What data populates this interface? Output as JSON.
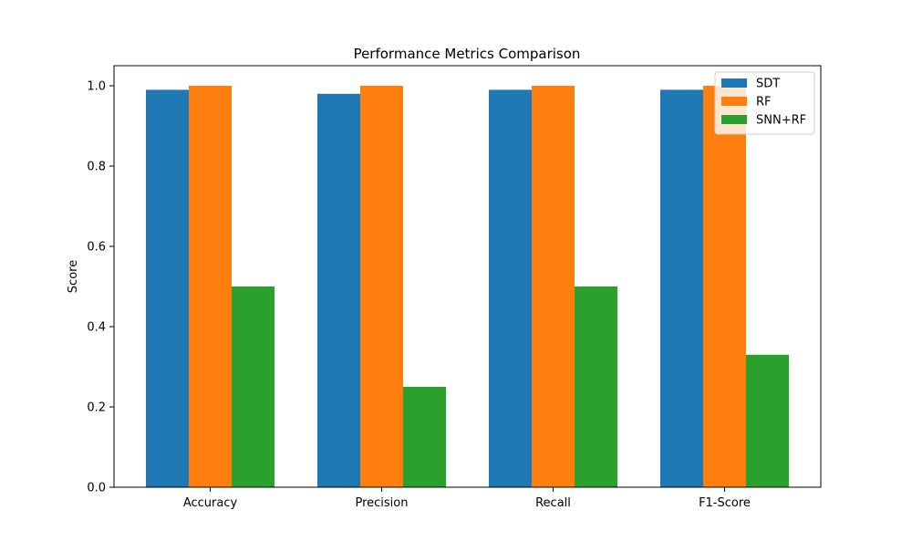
{
  "chart_data": {
    "type": "bar",
    "title": "Performance Metrics Comparison",
    "xlabel": "",
    "ylabel": "Score",
    "categories": [
      "Accuracy",
      "Precision",
      "Recall",
      "F1-Score"
    ],
    "series": [
      {
        "name": "SDT",
        "color": "#1f77b4",
        "values": [
          0.99,
          0.98,
          0.99,
          0.99
        ]
      },
      {
        "name": "RF",
        "color": "#ff7f0e",
        "values": [
          1.0,
          1.0,
          1.0,
          1.0
        ]
      },
      {
        "name": "SNN+RF",
        "color": "#2ca02c",
        "values": [
          0.5,
          0.25,
          0.5,
          0.33
        ]
      }
    ],
    "ylim": [
      0,
      1.05
    ],
    "yticks": [
      0.0,
      0.2,
      0.4,
      0.6,
      0.8,
      1.0
    ],
    "ytick_labels": [
      "0.0",
      "0.2",
      "0.4",
      "0.6",
      "0.8",
      "1.0"
    ],
    "grid": false,
    "legend_position": "top-right"
  }
}
